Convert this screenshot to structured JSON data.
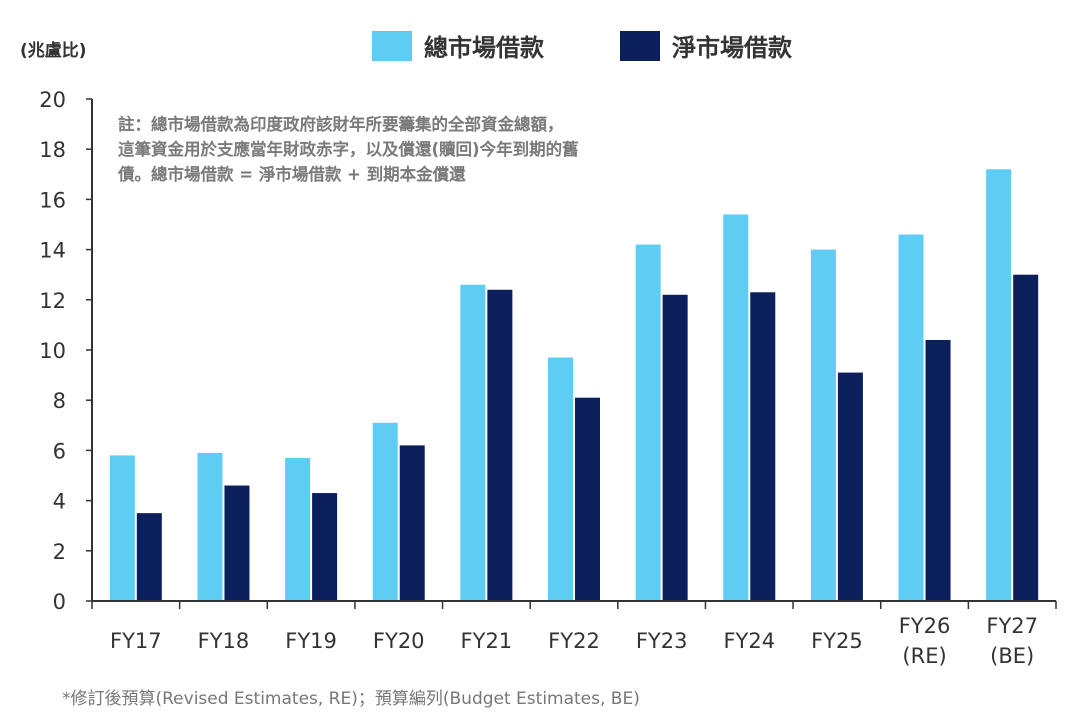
{
  "unit_label": "(兆盧比)",
  "note_lines": [
    "註：總市場借款為印度政府該財年所要籌集的全部資金總額，",
    "這筆資金用於支應當年財政赤字，以及償還(贖回)今年到期的舊",
    "債。總市場借款 = 淨市場借款 + 到期本金償還"
  ],
  "footnote": "*修訂後預算(Revised Estimates, RE)；預算編列(Budget Estimates, BE)",
  "colors": {
    "gross": "#5dcdf4",
    "net": "#0a1f5c",
    "axis": "#333333",
    "text": "#333333"
  },
  "chart_data": {
    "type": "bar",
    "categories": [
      [
        "FY17"
      ],
      [
        "FY18"
      ],
      [
        "FY19"
      ],
      [
        "FY20"
      ],
      [
        "FY21"
      ],
      [
        "FY22"
      ],
      [
        "FY23"
      ],
      [
        "FY24"
      ],
      [
        "FY25"
      ],
      [
        "FY26",
        "(RE)"
      ],
      [
        "FY27",
        "(BE)"
      ]
    ],
    "series": [
      {
        "name": "總市場借款",
        "values": [
          5.8,
          5.9,
          5.7,
          7.1,
          12.6,
          9.7,
          14.2,
          15.4,
          14.0,
          14.6,
          17.2
        ]
      },
      {
        "name": "淨市場借款",
        "values": [
          3.5,
          4.6,
          4.3,
          6.2,
          12.4,
          8.1,
          12.2,
          12.3,
          9.1,
          10.4,
          13.0
        ]
      }
    ],
    "ylim": [
      0,
      20
    ],
    "yticks": [
      0,
      2,
      4,
      6,
      8,
      10,
      12,
      14,
      16,
      18,
      20
    ],
    "legend": "top-center",
    "grid": false
  }
}
